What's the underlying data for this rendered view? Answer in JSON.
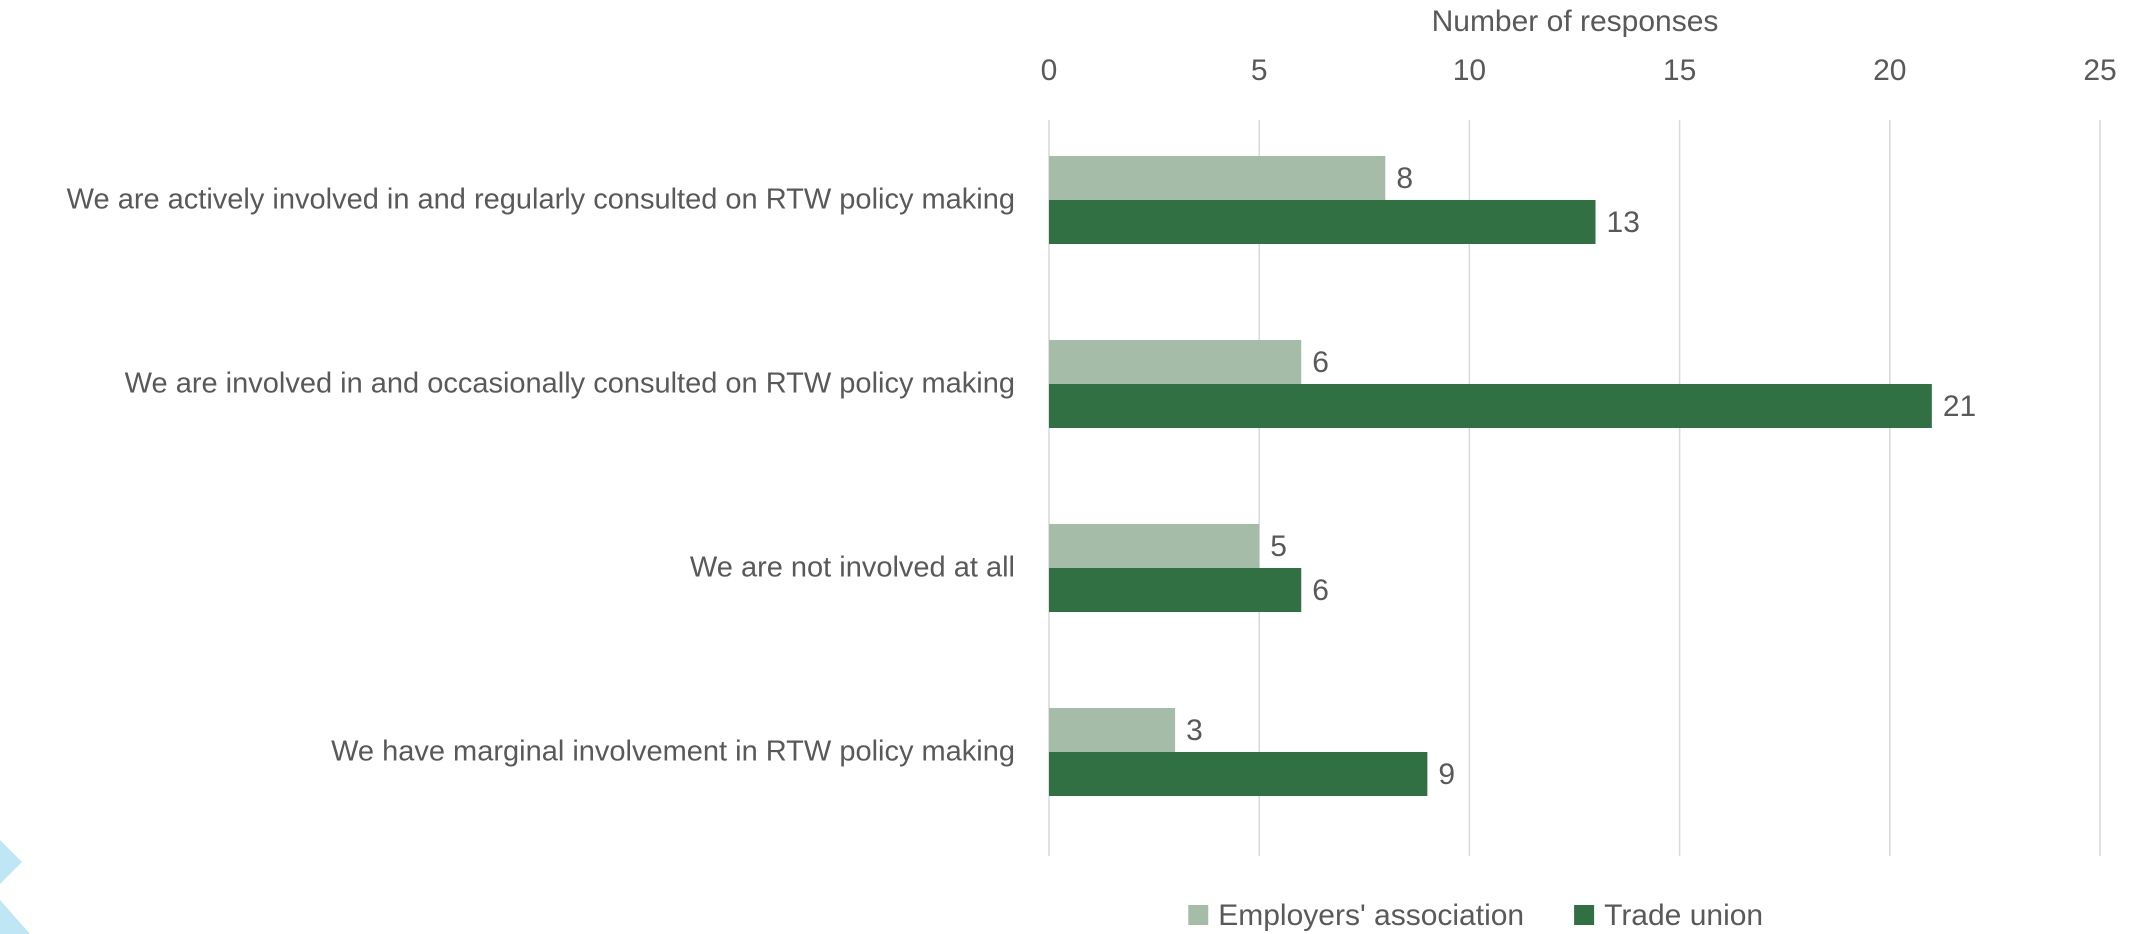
{
  "chart_data": {
    "type": "hbar",
    "x_label": "Number of responses",
    "categories": [
      "We are actively involved in and regularly consulted on RTW policy making",
      "We are involved in and occasionally consulted on RTW policy making",
      "We are not involved at all",
      "We have marginal involvement in RTW policy making"
    ],
    "series": [
      {
        "name": "Employers' association",
        "color": "#a5bda8",
        "values": [
          8,
          6,
          5,
          3
        ]
      },
      {
        "name": "Trade union",
        "color": "#317043",
        "values": [
          13,
          21,
          6,
          9
        ]
      }
    ],
    "xlim": [
      0,
      25
    ],
    "xticks": [
      0,
      5,
      10,
      15,
      20,
      25
    ],
    "grid": true,
    "legend": "bottom"
  }
}
